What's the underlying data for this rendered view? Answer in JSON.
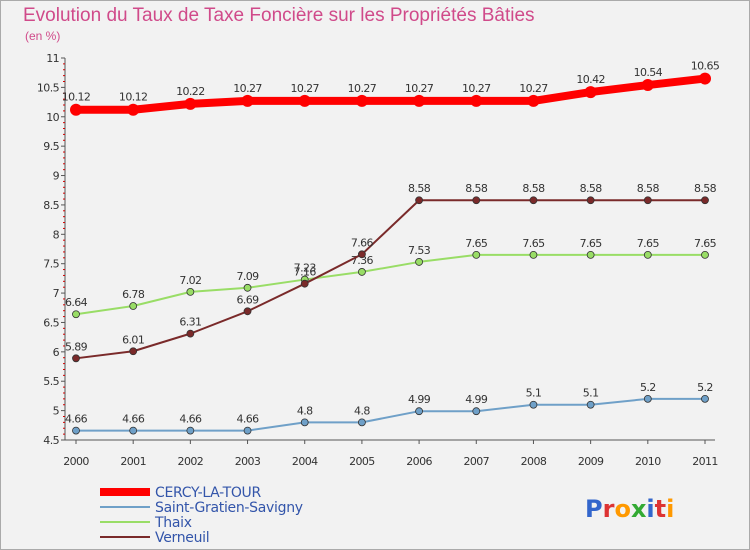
{
  "title": "Evolution du Taux de Taxe Foncière sur les Propriétés Bâties",
  "subtitle": "(en %)",
  "logo": "Proxiti",
  "chart_data": {
    "type": "line",
    "x": [
      "2000",
      "2001",
      "2002",
      "2003",
      "2004",
      "2005",
      "2006",
      "2007",
      "2008",
      "2009",
      "2010",
      "2011"
    ],
    "ylim": [
      4.5,
      11
    ],
    "yticks": [
      "4.5",
      "5",
      "5.5",
      "6",
      "6.5",
      "7",
      "7.5",
      "8",
      "8.5",
      "9",
      "9.5",
      "10",
      "10.5",
      "11"
    ],
    "grid": false,
    "legend_position": "bottom-left",
    "series": [
      {
        "name": "CERCY-LA-TOUR",
        "color": "#ff0000",
        "values": [
          10.12,
          10.12,
          10.22,
          10.27,
          10.27,
          10.27,
          10.27,
          10.27,
          10.27,
          10.42,
          10.54,
          10.65
        ],
        "labels": [
          "10.12",
          "10.12",
          "10.22",
          "10.27",
          "10.27",
          "10.27",
          "10.27",
          "10.27",
          "10.27",
          "10.42",
          "10.54",
          "10.65"
        ]
      },
      {
        "name": "Saint-Gratien-Savigny",
        "color": "#6fa0c8",
        "values": [
          4.66,
          4.66,
          4.66,
          4.66,
          4.8,
          4.8,
          4.99,
          4.99,
          5.1,
          5.1,
          5.2,
          5.2
        ],
        "labels": [
          "4.66",
          "4.66",
          "4.66",
          "4.66",
          "4.8",
          "4.8",
          "4.99",
          "4.99",
          "5.1",
          "5.1",
          "5.2",
          "5.2"
        ]
      },
      {
        "name": "Thaix",
        "color": "#99dd66",
        "values": [
          6.64,
          6.78,
          7.02,
          7.09,
          7.23,
          7.36,
          7.53,
          7.65,
          7.65,
          7.65,
          7.65,
          7.65
        ],
        "labels": [
          "6.64",
          "6.78",
          "7.02",
          "7.09",
          "7.23",
          "7.36",
          "7.53",
          "7.65",
          "7.65",
          "7.65",
          "7.65",
          "7.65"
        ]
      },
      {
        "name": "Verneuil",
        "color": "#7a2a2a",
        "values": [
          5.89,
          6.01,
          6.31,
          6.69,
          7.16,
          7.66,
          8.58,
          8.58,
          8.58,
          8.58,
          8.58,
          8.58
        ],
        "labels": [
          "5.89",
          "6.01",
          "6.31",
          "6.69",
          "7.16",
          "7.66",
          "8.58",
          "8.58",
          "8.58",
          "8.58",
          "8.58",
          "8.58"
        ]
      }
    ]
  }
}
